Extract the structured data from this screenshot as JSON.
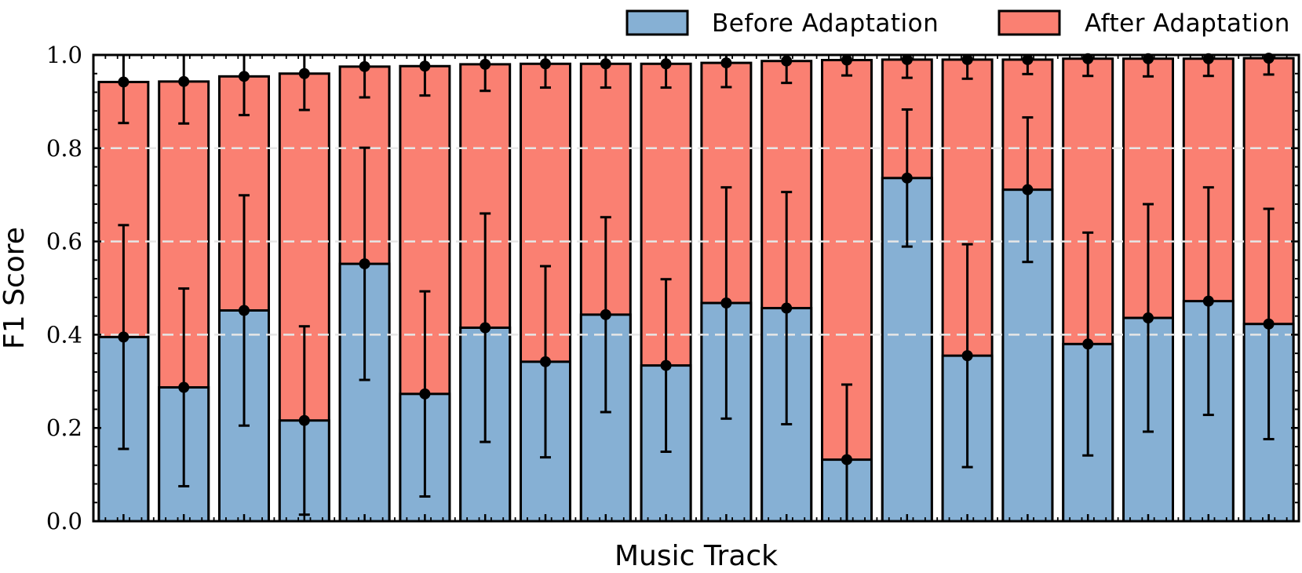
{
  "chart_data": {
    "type": "bar",
    "stacked_overlay": true,
    "xlabel": "Music Track",
    "ylabel": "F1 Score",
    "ylim": [
      0.0,
      1.0
    ],
    "yticks": [
      "0.0",
      "0.2",
      "0.4",
      "0.6",
      "0.8",
      "1.0"
    ],
    "grid": "horizontal dashed at 0.4, 0.6, 0.8",
    "legend_position": "top-right, above plot",
    "series": [
      {
        "name": "Before Adaptation",
        "color": "#86b0d4",
        "values": [
          0.395,
          0.287,
          0.452,
          0.216,
          0.552,
          0.273,
          0.415,
          0.342,
          0.443,
          0.334,
          0.468,
          0.457,
          0.132,
          0.736,
          0.355,
          0.711,
          0.38,
          0.436,
          0.472,
          0.423
        ],
        "errors": [
          0.24,
          0.212,
          0.247,
          0.202,
          0.249,
          0.22,
          0.245,
          0.205,
          0.209,
          0.185,
          0.248,
          0.249,
          0.161,
          0.147,
          0.239,
          0.155,
          0.239,
          0.244,
          0.244,
          0.247
        ]
      },
      {
        "name": "After Adaptation",
        "color": "#fa8072",
        "values": [
          0.942,
          0.943,
          0.954,
          0.96,
          0.975,
          0.976,
          0.98,
          0.981,
          0.981,
          0.981,
          0.983,
          0.987,
          0.989,
          0.99,
          0.99,
          0.99,
          0.992,
          0.992,
          0.992,
          0.993
        ],
        "errors": [
          0.088,
          0.09,
          0.083,
          0.078,
          0.066,
          0.063,
          0.057,
          0.051,
          0.051,
          0.051,
          0.052,
          0.047,
          0.033,
          0.039,
          0.041,
          0.031,
          0.037,
          0.038,
          0.037,
          0.035
        ]
      }
    ]
  }
}
